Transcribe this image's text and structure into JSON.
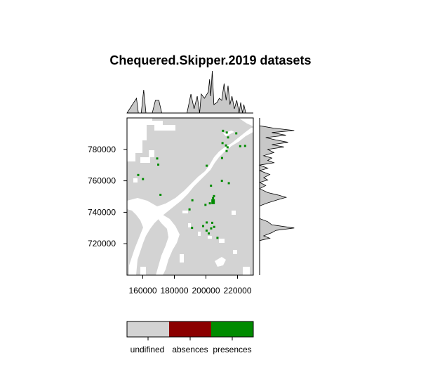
{
  "chart_data": {
    "type": "heatmap",
    "title": "Chequered.Skipper.2019 datasets",
    "xlabel": "",
    "ylabel": "",
    "xlim": [
      150000,
      230000
    ],
    "ylim": [
      700000,
      800000
    ],
    "x_ticks": [
      160000,
      180000,
      200000,
      220000
    ],
    "y_ticks": [
      720000,
      740000,
      760000,
      780000
    ],
    "x_tick_labels": [
      "160000",
      "180000",
      "200000",
      "220000"
    ],
    "y_tick_labels": [
      "720000",
      "740000",
      "760000",
      "780000"
    ],
    "grid": false,
    "legend_position": "bottom",
    "classes": [
      {
        "label": "undifined",
        "color": "#d3d3d3"
      },
      {
        "label": "absences",
        "color": "#8b0000"
      },
      {
        "label": "presences",
        "color": "#008b00"
      }
    ],
    "presence_points": [
      [
        210800,
        791800
      ],
      [
        213200,
        790700
      ],
      [
        219200,
        790200
      ],
      [
        214000,
        787600
      ],
      [
        210500,
        784000
      ],
      [
        212700,
        782500
      ],
      [
        221700,
        782000
      ],
      [
        224800,
        782200
      ],
      [
        213700,
        781300
      ],
      [
        213100,
        779000
      ],
      [
        169100,
        774200
      ],
      [
        210200,
        774500
      ],
      [
        169800,
        770300
      ],
      [
        200500,
        769600
      ],
      [
        157100,
        763700
      ],
      [
        160100,
        761100
      ],
      [
        210100,
        760000
      ],
      [
        214500,
        758500
      ],
      [
        203200,
        756900
      ],
      [
        171200,
        751100
      ],
      [
        205100,
        750300
      ],
      [
        204500,
        749000
      ],
      [
        191400,
        747600
      ],
      [
        202500,
        745700
      ],
      [
        199700,
        744700
      ],
      [
        189600,
        741800
      ],
      [
        200500,
        733500
      ],
      [
        204000,
        733300
      ],
      [
        198200,
        731200
      ],
      [
        205200,
        730700
      ],
      [
        203300,
        729700
      ],
      [
        191200,
        730100
      ],
      [
        200400,
        728300
      ],
      [
        201800,
        726500
      ],
      [
        207300,
        723700
      ]
    ],
    "x_marginal_density": [
      [
        150000,
        0
      ],
      [
        156000,
        0.35
      ],
      [
        157200,
        0
      ],
      [
        159000,
        0
      ],
      [
        160600,
        0.55
      ],
      [
        162000,
        0
      ],
      [
        166000,
        0
      ],
      [
        168000,
        0.3
      ],
      [
        170200,
        0.3
      ],
      [
        172000,
        0
      ],
      [
        188000,
        0
      ],
      [
        190500,
        0.45
      ],
      [
        192500,
        0.1
      ],
      [
        194500,
        0.4
      ],
      [
        196000,
        0
      ],
      [
        197000,
        0.45
      ],
      [
        199000,
        0.35
      ],
      [
        201500,
        0.5
      ],
      [
        202300,
        0.8
      ],
      [
        203000,
        0.4
      ],
      [
        204000,
        1.0
      ],
      [
        205000,
        0.2
      ],
      [
        207000,
        0.25
      ],
      [
        208500,
        0.35
      ],
      [
        210000,
        0.3
      ],
      [
        211500,
        0.7
      ],
      [
        212800,
        0.3
      ],
      [
        214000,
        0.65
      ],
      [
        215200,
        0.2
      ],
      [
        216500,
        0.4
      ],
      [
        218000,
        0.1
      ],
      [
        219500,
        0.3
      ],
      [
        221000,
        0
      ],
      [
        222000,
        0.25
      ],
      [
        223200,
        0
      ],
      [
        224000,
        0.2
      ],
      [
        225200,
        0
      ],
      [
        230000,
        0
      ]
    ],
    "y_marginal_density": [
      [
        795000,
        0
      ],
      [
        793500,
        0.35
      ],
      [
        792000,
        0.85
      ],
      [
        790700,
        0.3
      ],
      [
        789000,
        0.65
      ],
      [
        787500,
        0.15
      ],
      [
        786000,
        0.4
      ],
      [
        784500,
        0.7
      ],
      [
        783000,
        0.3
      ],
      [
        781500,
        0.6
      ],
      [
        780000,
        0.2
      ],
      [
        778000,
        0.35
      ],
      [
        776000,
        0.1
      ],
      [
        774500,
        0.3
      ],
      [
        773000,
        0.2
      ],
      [
        771500,
        0.35
      ],
      [
        770000,
        0
      ],
      [
        768000,
        0.2
      ],
      [
        766500,
        0
      ],
      [
        764000,
        0.25
      ],
      [
        762000,
        0.1
      ],
      [
        760500,
        0.2
      ],
      [
        759000,
        0
      ],
      [
        757000,
        0.15
      ],
      [
        755000,
        0
      ],
      [
        752500,
        0.2
      ],
      [
        751000,
        0.45
      ],
      [
        749500,
        0.65
      ],
      [
        748000,
        0.45
      ],
      [
        746000,
        0.2
      ],
      [
        744000,
        0
      ],
      [
        741000,
        0
      ],
      [
        738000,
        0
      ],
      [
        736000,
        0
      ],
      [
        734000,
        0.2
      ],
      [
        732000,
        0.3
      ],
      [
        730000,
        0.85
      ],
      [
        728500,
        0.4
      ],
      [
        727000,
        0.3
      ],
      [
        725000,
        0.1
      ],
      [
        723500,
        0.25
      ],
      [
        722000,
        0
      ],
      [
        716000,
        0
      ]
    ]
  }
}
